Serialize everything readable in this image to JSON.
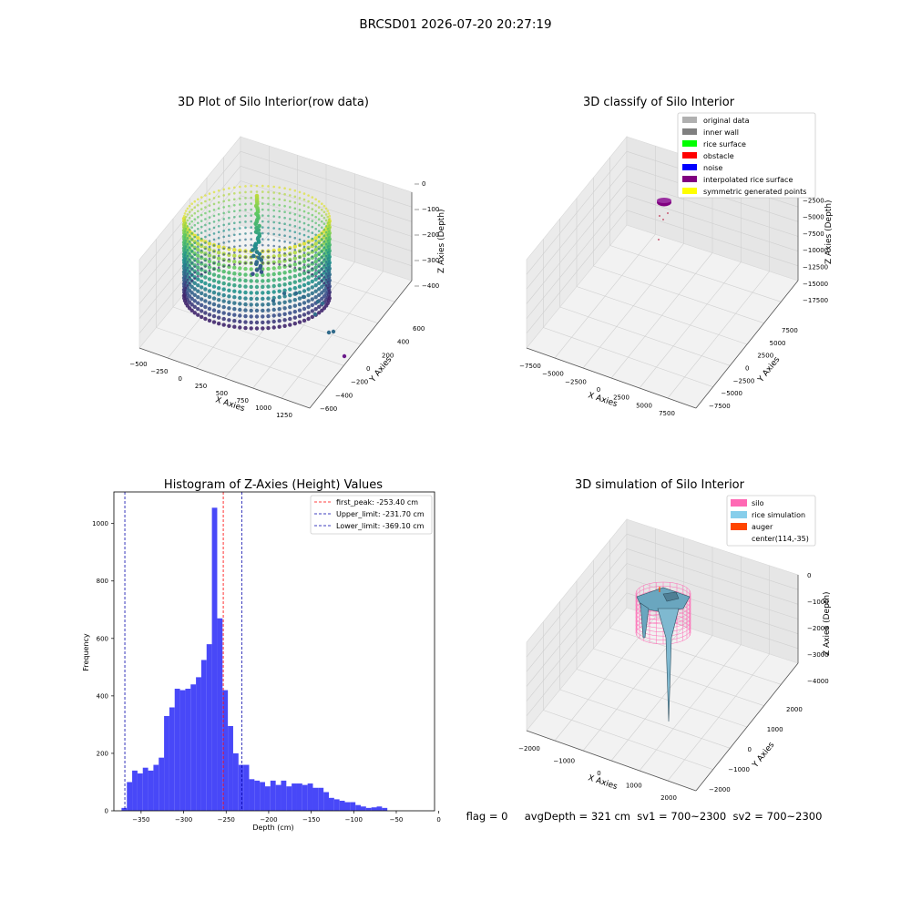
{
  "suptitle": "BRCSD01 2026-07-20 20:27:19",
  "chart_data": [
    {
      "type": "scatter",
      "projection": "3d",
      "title": "3D Plot of Silo Interior(row data)",
      "xlabel": "X Axies",
      "ylabel": "Y Axies",
      "zlabel": "Z Axies (Depth)",
      "xticks": [
        "−500",
        "−250",
        "0",
        "250",
        "500",
        "750",
        "1000",
        "1250"
      ],
      "yticks": [
        "−600",
        "−400",
        "−200",
        "0",
        "200",
        "400",
        "600"
      ],
      "zticks": [
        "0",
        "−100",
        "−200",
        "−300",
        "−400"
      ],
      "xlim": [
        -600,
        1300
      ],
      "ylim": [
        -650,
        650
      ],
      "zlim": [
        -450,
        0
      ],
      "colormap": "viridis",
      "colors": {
        "low": "#440154",
        "mid": "#21908d",
        "high": "#fde725"
      }
    },
    {
      "type": "scatter",
      "projection": "3d",
      "title": "3D classify of Silo Interior",
      "xlabel": "X Axies",
      "ylabel": "Y Axies",
      "zlabel": "Z Axies (Depth)",
      "xticks": [
        "−7500",
        "−5000",
        "−2500",
        "0",
        "2500",
        "5000",
        "7500"
      ],
      "yticks": [
        "−7500",
        "−5000",
        "−2500",
        "0",
        "2500",
        "5000",
        "7500"
      ],
      "zticks": [
        "0",
        "−2500",
        "−5000",
        "−7500",
        "−10000",
        "−12500",
        "−15000",
        "−17500"
      ],
      "legend_position": "top-right",
      "legend": [
        {
          "label": "original data",
          "color": "#b0b0b0"
        },
        {
          "label": "inner wall",
          "color": "#808080"
        },
        {
          "label": "rice surface",
          "color": "#00ff00"
        },
        {
          "label": "obstacle",
          "color": "#ff0000"
        },
        {
          "label": "noise",
          "color": "#0000ff"
        },
        {
          "label": "interpolated rice surface",
          "color": "#800080"
        },
        {
          "label": "symmetric generated points",
          "color": "#ffff00"
        }
      ]
    },
    {
      "type": "bar",
      "title": "Histogram of Z-Axies (Height) Values",
      "xlabel": "Depth (cm)",
      "ylabel": "Frequency",
      "xlim": [
        -382,
        -5
      ],
      "ylim": [
        0,
        1110
      ],
      "xticks": [
        -350,
        -300,
        -250,
        -200,
        -150,
        -100,
        -50,
        0
      ],
      "xtick_labels": [
        "−350",
        "−300",
        "−250",
        "−200",
        "−150",
        "−100",
        "−50",
        "0"
      ],
      "yticks": [
        0,
        200,
        400,
        600,
        800,
        1000
      ],
      "yticks_labels": [
        "0",
        "200",
        "400",
        "600",
        "800",
        "1000"
      ],
      "bar_color": "#4848f8",
      "bin_start": -373,
      "bin_width": 6.25,
      "values": [
        10,
        100,
        140,
        130,
        150,
        140,
        160,
        185,
        330,
        360,
        425,
        420,
        425,
        440,
        465,
        525,
        580,
        1055,
        670,
        420,
        295,
        200,
        160,
        160,
        110,
        105,
        100,
        85,
        105,
        90,
        105,
        85,
        95,
        95,
        90,
        95,
        80,
        80,
        65,
        45,
        40,
        35,
        30,
        30,
        20,
        15,
        10,
        12,
        15,
        10
      ],
      "vlines": [
        {
          "label": "first_peak: -253.40 cm",
          "x": -253.4,
          "color": "#ff0000"
        },
        {
          "label": "Upper_limit: -231.70 cm",
          "x": -231.7,
          "color": "#0000aa"
        },
        {
          "label": "Lower_limit: -369.10 cm",
          "x": -369.1,
          "color": "#0000aa"
        }
      ],
      "legend_position": "top-right"
    },
    {
      "type": "surface",
      "projection": "3d",
      "title": "3D simulation of Silo Interior",
      "xlabel": "X Axies",
      "ylabel": "Y Axies",
      "zlabel": "Z Axies (Depth)",
      "xticks": [
        "−2000",
        "−1000",
        "0",
        "1000",
        "2000"
      ],
      "yticks": [
        "−2000",
        "−1000",
        "0",
        "1000",
        "2000"
      ],
      "zticks": [
        "0",
        "−1000",
        "−2000",
        "−3000",
        "−4000"
      ],
      "legend_position": "top-right",
      "legend": [
        {
          "label": "silo",
          "color": "#ff69b4"
        },
        {
          "label": "rice simulation",
          "color": "#87ceeb"
        },
        {
          "label": "auger",
          "color": "#ff4500"
        },
        {
          "label": "center(114,-35)",
          "color": ""
        }
      ]
    }
  ],
  "status_line": "flag = 0     avgDepth = 321 cm  sv1 = 700~2300  sv2 = 700~2300"
}
